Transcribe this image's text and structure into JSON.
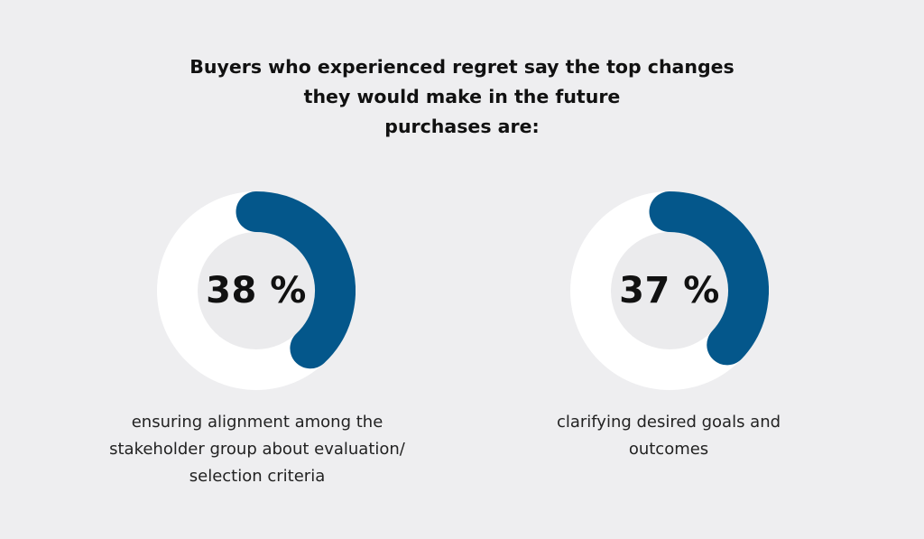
{
  "title_lines": [
    "Buyers who experienced regret say the top changes",
    "they would make in the future",
    "purchases are:"
  ],
  "colors": {
    "background": "#eeeef0",
    "ring_track": "#ffffff",
    "ring_fill": "#04578b",
    "inner": "#ebebed"
  },
  "chart_data": [
    {
      "type": "pie",
      "value": 38,
      "label": "38 %",
      "caption_lines": [
        "ensuring alignment among the",
        "stakeholder group about evaluation/",
        "selection criteria"
      ]
    },
    {
      "type": "pie",
      "value": 37,
      "label": "37 %",
      "caption_lines": [
        "clarifying desired goals and",
        "outcomes"
      ]
    }
  ]
}
